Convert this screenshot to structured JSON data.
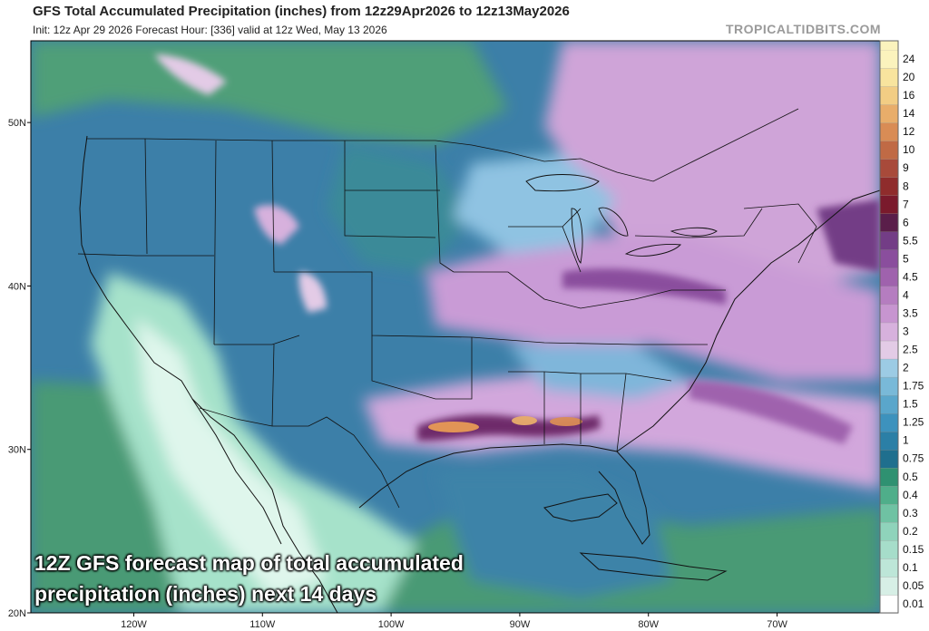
{
  "header": {
    "title": "GFS Total Accumulated Precipitation (inches) from 12z29Apr2026 to 12z13May2026",
    "subtitle": "Init: 12z Apr 29 2026   Forecast Hour: [336]   valid at 12z Wed, May 13 2026",
    "brand": "TROPICALTIDBITS.COM"
  },
  "caption": "12Z GFS forecast map of total accumulated precipitation (inches) next 14 days",
  "map": {
    "lon_range": [
      -128,
      -62
    ],
    "lat_range": [
      20,
      55
    ],
    "lat_ticks": [
      {
        "lat": 50,
        "label": "50N"
      },
      {
        "lat": 40,
        "label": "40N"
      },
      {
        "lat": 30,
        "label": "30N"
      },
      {
        "lat": 20,
        "label": "20N"
      }
    ],
    "lon_ticks": [
      {
        "lon": -120,
        "label": "120W"
      },
      {
        "lon": -110,
        "label": "110W"
      },
      {
        "lon": -100,
        "label": "100W"
      },
      {
        "lon": -90,
        "label": "90W"
      },
      {
        "lon": -80,
        "label": "80W"
      },
      {
        "lon": -70,
        "label": "70W"
      }
    ],
    "colors": {
      "land_dry": "#9ee0c8",
      "green": "#3f9a6a",
      "teal": "#2f8aa5",
      "blue": "#3c6fa8",
      "lightblue": "#8fc3e2",
      "pink": "#d9aedb",
      "purple": "#9b5ea7",
      "darkpurple": "#6e2a6a",
      "orange": "#e79a55",
      "white": "#ffffff"
    }
  },
  "legend": {
    "levels": [
      "0.01",
      "0.05",
      "0.1",
      "0.15",
      "0.2",
      "0.3",
      "0.4",
      "0.5",
      "0.75",
      "1",
      "1.25",
      "1.5",
      "1.75",
      "2",
      "2.5",
      "3",
      "3.5",
      "4",
      "4.5",
      "5",
      "5.5",
      "6",
      "7",
      "8",
      "9",
      "10",
      "12",
      "14",
      "16",
      "20",
      "24"
    ],
    "colors": [
      "#ffffff",
      "#d7efe6",
      "#bde6d8",
      "#a6ddca",
      "#8fd3bb",
      "#6fc2a3",
      "#4fae8a",
      "#2f9171",
      "#1f6f8e",
      "#2b7fa6",
      "#3d92bd",
      "#5aa6cb",
      "#79b9d8",
      "#9ccbe4",
      "#e3cbe6",
      "#d7b1dd",
      "#c795d0",
      "#b57dc0",
      "#9f62ad",
      "#8a4e9d",
      "#733d86",
      "#5a1e4a",
      "#7a1a2c",
      "#8f2c2c",
      "#a84a3a",
      "#c06a45",
      "#d98c55",
      "#e8ad6a",
      "#f2cd84",
      "#f8e49e",
      "#fbf3bd"
    ]
  }
}
